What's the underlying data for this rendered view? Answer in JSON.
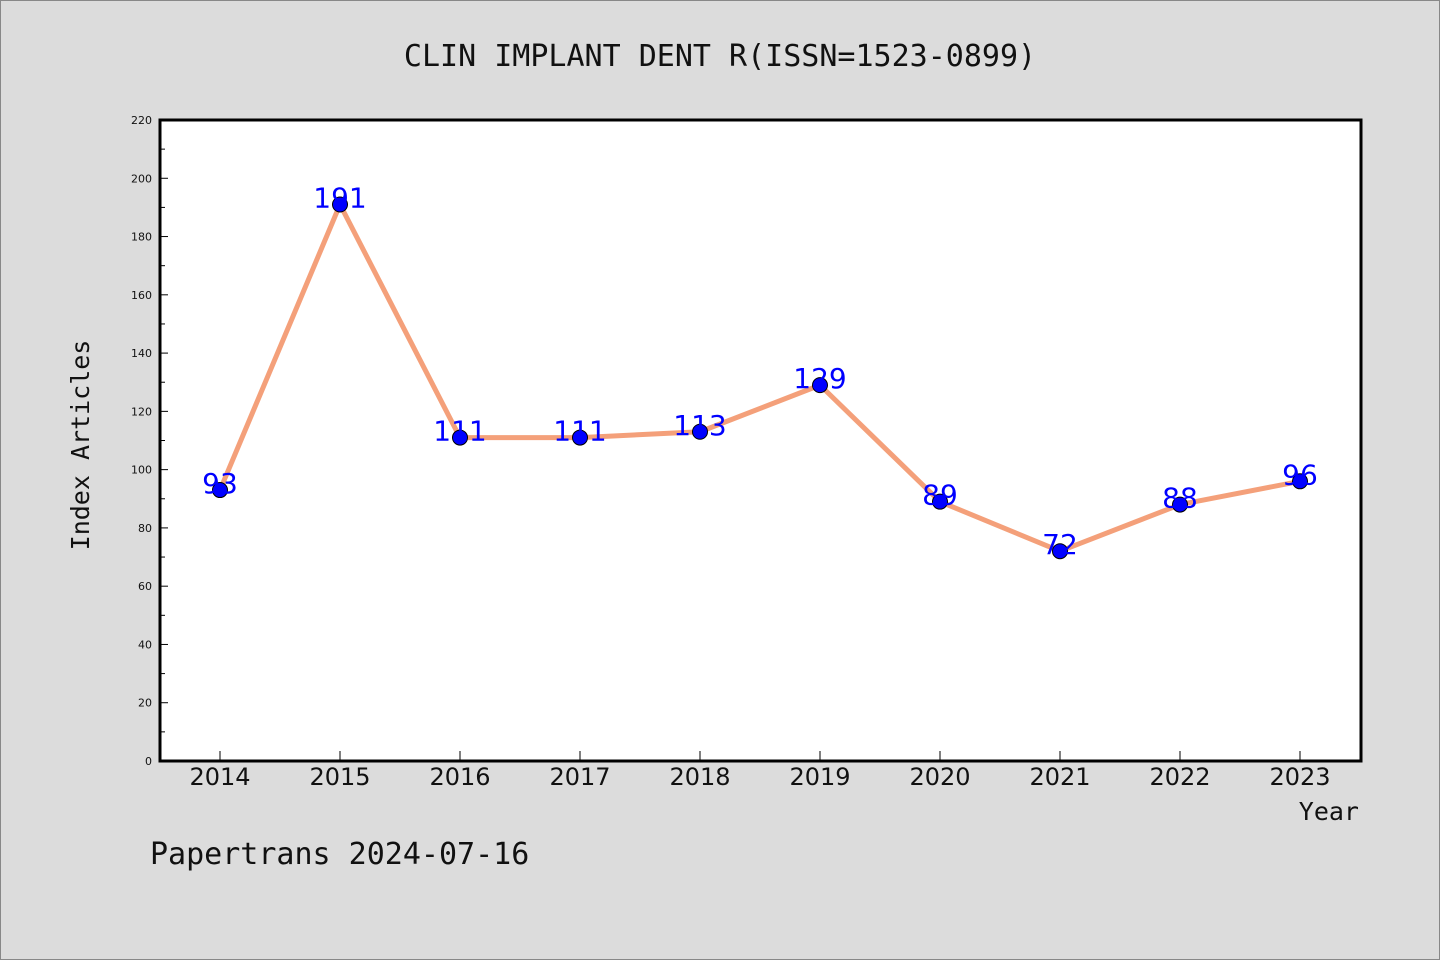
{
  "chart_data": {
    "type": "line",
    "title": "CLIN IMPLANT DENT R(ISSN=1523-0899)",
    "xlabel": "Year",
    "ylabel": "Index Articles",
    "categories": [
      "2014",
      "2015",
      "2016",
      "2017",
      "2018",
      "2019",
      "2020",
      "2021",
      "2022",
      "2023"
    ],
    "values": [
      93,
      191,
      111,
      111,
      113,
      129,
      89,
      72,
      88,
      96
    ],
    "ylim": [
      0,
      220
    ],
    "yticks": [
      0,
      20,
      40,
      60,
      80,
      100,
      120,
      140,
      160,
      180,
      200,
      220
    ],
    "grid": false,
    "line_color": "#f4a07a",
    "marker_color": "#0000ff",
    "label_color": "#0000ff",
    "background": "#dcdcdc",
    "plot_background": "#ffffff"
  },
  "footer": {
    "text": "Papertrans 2024-07-16"
  }
}
